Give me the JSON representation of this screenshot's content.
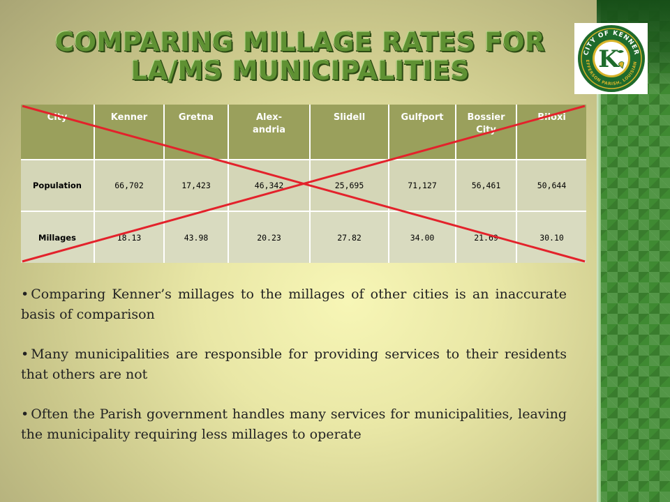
{
  "slide": {
    "title": "Comparing Millage Rates for LA/MS Municipalities",
    "logo": {
      "top_text": "CITY OF KENNER",
      "bottom_text": "JEFFERSON PARISH, LOUISIANA",
      "letter": "K",
      "colors": {
        "ring": "#1f6b2c",
        "gold": "#d8b42a",
        "white": "#ffffff"
      }
    }
  },
  "table": {
    "headers": [
      "City",
      "Kenner",
      "Gretna",
      "Alex-\nandria",
      "Slidell",
      "Gulfport",
      "Bossier\nCity",
      "Biloxi"
    ],
    "rows": [
      {
        "label": "Population",
        "values": [
          "66,702",
          "17,423",
          "46,342",
          "25,695",
          "71,127",
          "56,461",
          "50,644"
        ]
      },
      {
        "label": "Millages",
        "values": [
          "18.13",
          "43.98",
          "20.23",
          "27.82",
          "34.00",
          "21.69",
          "30.10"
        ]
      }
    ],
    "crossed_out": true,
    "cross_color": "#e3222b"
  },
  "bullets": [
    "Comparing Kenner’s millages to the millages of other cities is an inaccurate basis of comparison",
    "Many municipalities are responsible for providing services to their residents that others are not",
    "Often the Parish government handles many services for municipalities, leaving the municipality requiring less millages to operate"
  ],
  "colors": {
    "title_green": "#5f9133",
    "header_fill": "#9aa05c",
    "sidebar_green": "#3f8a32"
  }
}
